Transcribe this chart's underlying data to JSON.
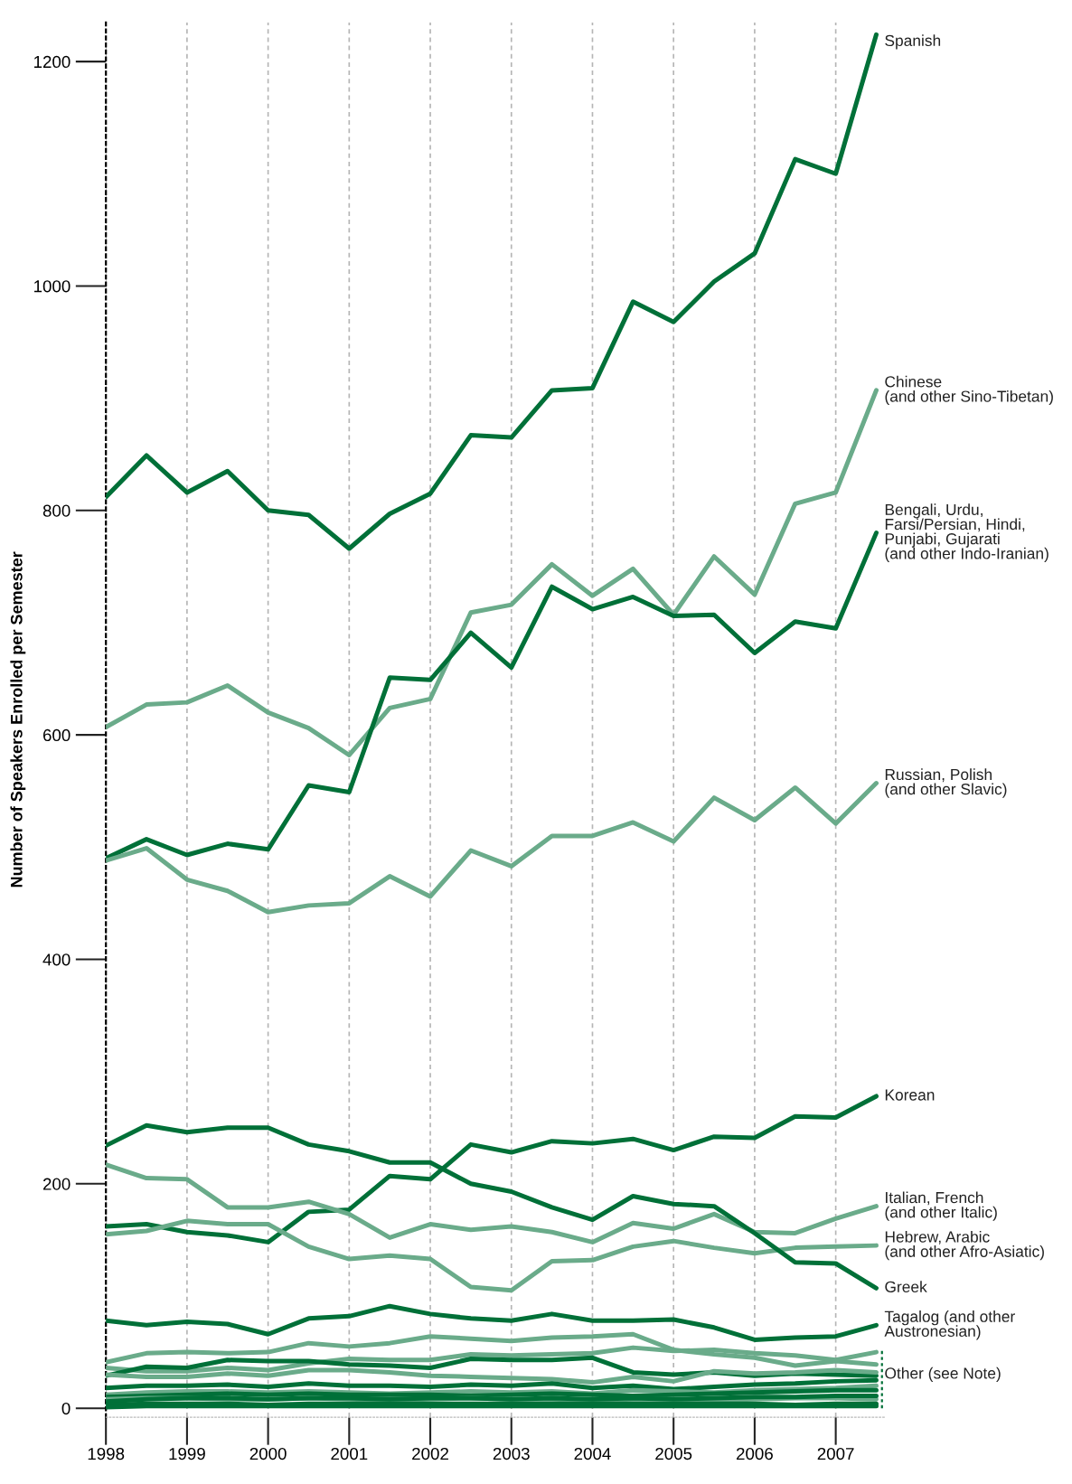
{
  "chart_data": {
    "type": "line",
    "ylabel": "Number of Speakers Enrolled per Semester",
    "x": [
      1998,
      1998.5,
      1999,
      1999.5,
      2000,
      2000.5,
      2001,
      2001.5,
      2002,
      2002.5,
      2003,
      2003.5,
      2004,
      2004.5,
      2005,
      2005.5,
      2006,
      2006.5,
      2007,
      2007.5
    ],
    "xlim": [
      1998,
      2007.6
    ],
    "xticks": [
      1998,
      1999,
      2000,
      2001,
      2002,
      2003,
      2004,
      2005,
      2006,
      2007
    ],
    "ylim": [
      -8,
      1235
    ],
    "yticks": [
      0,
      200,
      400,
      600,
      800,
      1000,
      1200
    ],
    "grid": "x",
    "annotations": [
      {
        "text": "Other (see Note)",
        "x": 2007.5,
        "y": 30
      }
    ],
    "series": [
      {
        "name": "Spanish",
        "color": "#007038",
        "values": [
          812,
          849,
          816,
          835,
          800,
          796,
          766,
          797,
          815,
          867,
          865,
          907,
          909,
          986,
          968,
          1004,
          1029,
          1113,
          1100,
          1224
        ]
      },
      {
        "name": "Chinese\n(and other Sino-Tibetan)",
        "color": "#6aab8a",
        "values": [
          607,
          627,
          629,
          644,
          620,
          606,
          582,
          624,
          632,
          709,
          716,
          752,
          724,
          748,
          707,
          759,
          725,
          806,
          816,
          907
        ]
      },
      {
        "name": "Bengali, Urdu,\nFarsi/Persian, Hindi,\nPunjabi, Gujarati\n(and other Indo-Iranian)",
        "color": "#007038",
        "values": [
          490,
          507,
          493,
          503,
          498,
          555,
          549,
          651,
          649,
          691,
          660,
          732,
          712,
          723,
          706,
          707,
          673,
          701,
          695,
          780
        ]
      },
      {
        "name": "Russian, Polish\n(and other Slavic)",
        "color": "#6aab8a",
        "values": [
          488,
          499,
          471,
          461,
          442,
          448,
          450,
          474,
          456,
          497,
          483,
          510,
          510,
          522,
          505,
          544,
          524,
          553,
          521,
          557
        ]
      },
      {
        "name": "Korean",
        "color": "#007038",
        "values": [
          162,
          164,
          157,
          154,
          148,
          175,
          177,
          207,
          204,
          235,
          228,
          238,
          236,
          240,
          230,
          242,
          241,
          260,
          259,
          278
        ]
      },
      {
        "name": "Italian, French\n(and other Italic)",
        "color": "#6aab8a",
        "values": [
          217,
          205,
          204,
          179,
          179,
          184,
          173,
          152,
          164,
          159,
          162,
          157,
          148,
          165,
          160,
          173,
          157,
          156,
          169,
          180
        ]
      },
      {
        "name": "Hebrew, Arabic\n(and other Afro-Asiatic)",
        "color": "#6aab8a",
        "values": [
          155,
          158,
          167,
          164,
          164,
          144,
          133,
          136,
          133,
          108,
          105,
          131,
          132,
          144,
          149,
          143,
          138,
          143,
          144,
          145
        ]
      },
      {
        "name": "Greek",
        "color": "#007038",
        "values": [
          234,
          252,
          246,
          250,
          250,
          235,
          229,
          219,
          219,
          200,
          193,
          179,
          168,
          189,
          182,
          180,
          156,
          130,
          129,
          107
        ]
      },
      {
        "name": "Tagalog (and other\nAustronesian)",
        "color": "#007038",
        "values": [
          78,
          74,
          77,
          75,
          66,
          80,
          82,
          91,
          84,
          80,
          78,
          84,
          78,
          78,
          79,
          72,
          61,
          63,
          64,
          74
        ]
      },
      {
        "color": "#6aab8a",
        "values": [
          41,
          49,
          50,
          49,
          50,
          58,
          55,
          58,
          64,
          62,
          60,
          63,
          64,
          66,
          52,
          48,
          45,
          38,
          42,
          39
        ]
      },
      {
        "color": "#6aab8a",
        "values": [
          36,
          33,
          33,
          36,
          34,
          40,
          44,
          43,
          43,
          48,
          47,
          48,
          49,
          54,
          51,
          52,
          49,
          47,
          43,
          50
        ]
      },
      {
        "color": "#007038",
        "values": [
          29,
          37,
          36,
          43,
          42,
          42,
          39,
          38,
          36,
          44,
          43,
          43,
          45,
          32,
          30,
          32,
          29,
          31,
          30,
          29
        ]
      },
      {
        "color": "#6aab8a",
        "values": [
          30,
          28,
          28,
          31,
          29,
          34,
          34,
          32,
          29,
          28,
          27,
          26,
          23,
          28,
          24,
          33,
          31,
          32,
          34,
          32
        ]
      },
      {
        "color": "#007038",
        "values": [
          18,
          20,
          20,
          21,
          19,
          22,
          20,
          20,
          19,
          21,
          20,
          22,
          18,
          20,
          17,
          19,
          21,
          22,
          24,
          25
        ]
      },
      {
        "color": "#6aab8a",
        "values": [
          12,
          14,
          15,
          15,
          14,
          15,
          14,
          13,
          14,
          15,
          14,
          15,
          13,
          16,
          15,
          14,
          16,
          17,
          18,
          20
        ]
      },
      {
        "color": "#007038",
        "values": [
          10,
          11,
          12,
          13,
          12,
          13,
          12,
          12,
          12,
          11,
          12,
          13,
          12,
          11,
          12,
          13,
          14,
          15,
          16,
          16
        ]
      },
      {
        "color": "#6aab8a",
        "values": [
          8,
          9,
          9,
          8,
          8,
          9,
          8,
          7,
          8,
          9,
          8,
          8,
          7,
          8,
          8,
          7,
          8,
          9,
          9,
          8
        ]
      },
      {
        "color": "#007038",
        "values": [
          6,
          8,
          9,
          9,
          8,
          9,
          9,
          8,
          9,
          9,
          8,
          9,
          8,
          9,
          8,
          9,
          10,
          10,
          11,
          11
        ]
      },
      {
        "color": "#007038",
        "values": [
          3,
          4,
          4,
          4,
          3,
          4,
          4,
          4,
          4,
          4,
          4,
          4,
          4,
          4,
          4,
          4,
          4,
          3,
          4,
          4
        ]
      },
      {
        "color": "#007038",
        "values": [
          1,
          2,
          2,
          2,
          2,
          2,
          2,
          2,
          2,
          2,
          2,
          2,
          2,
          2,
          2,
          2,
          2,
          2,
          2,
          2
        ]
      }
    ]
  }
}
